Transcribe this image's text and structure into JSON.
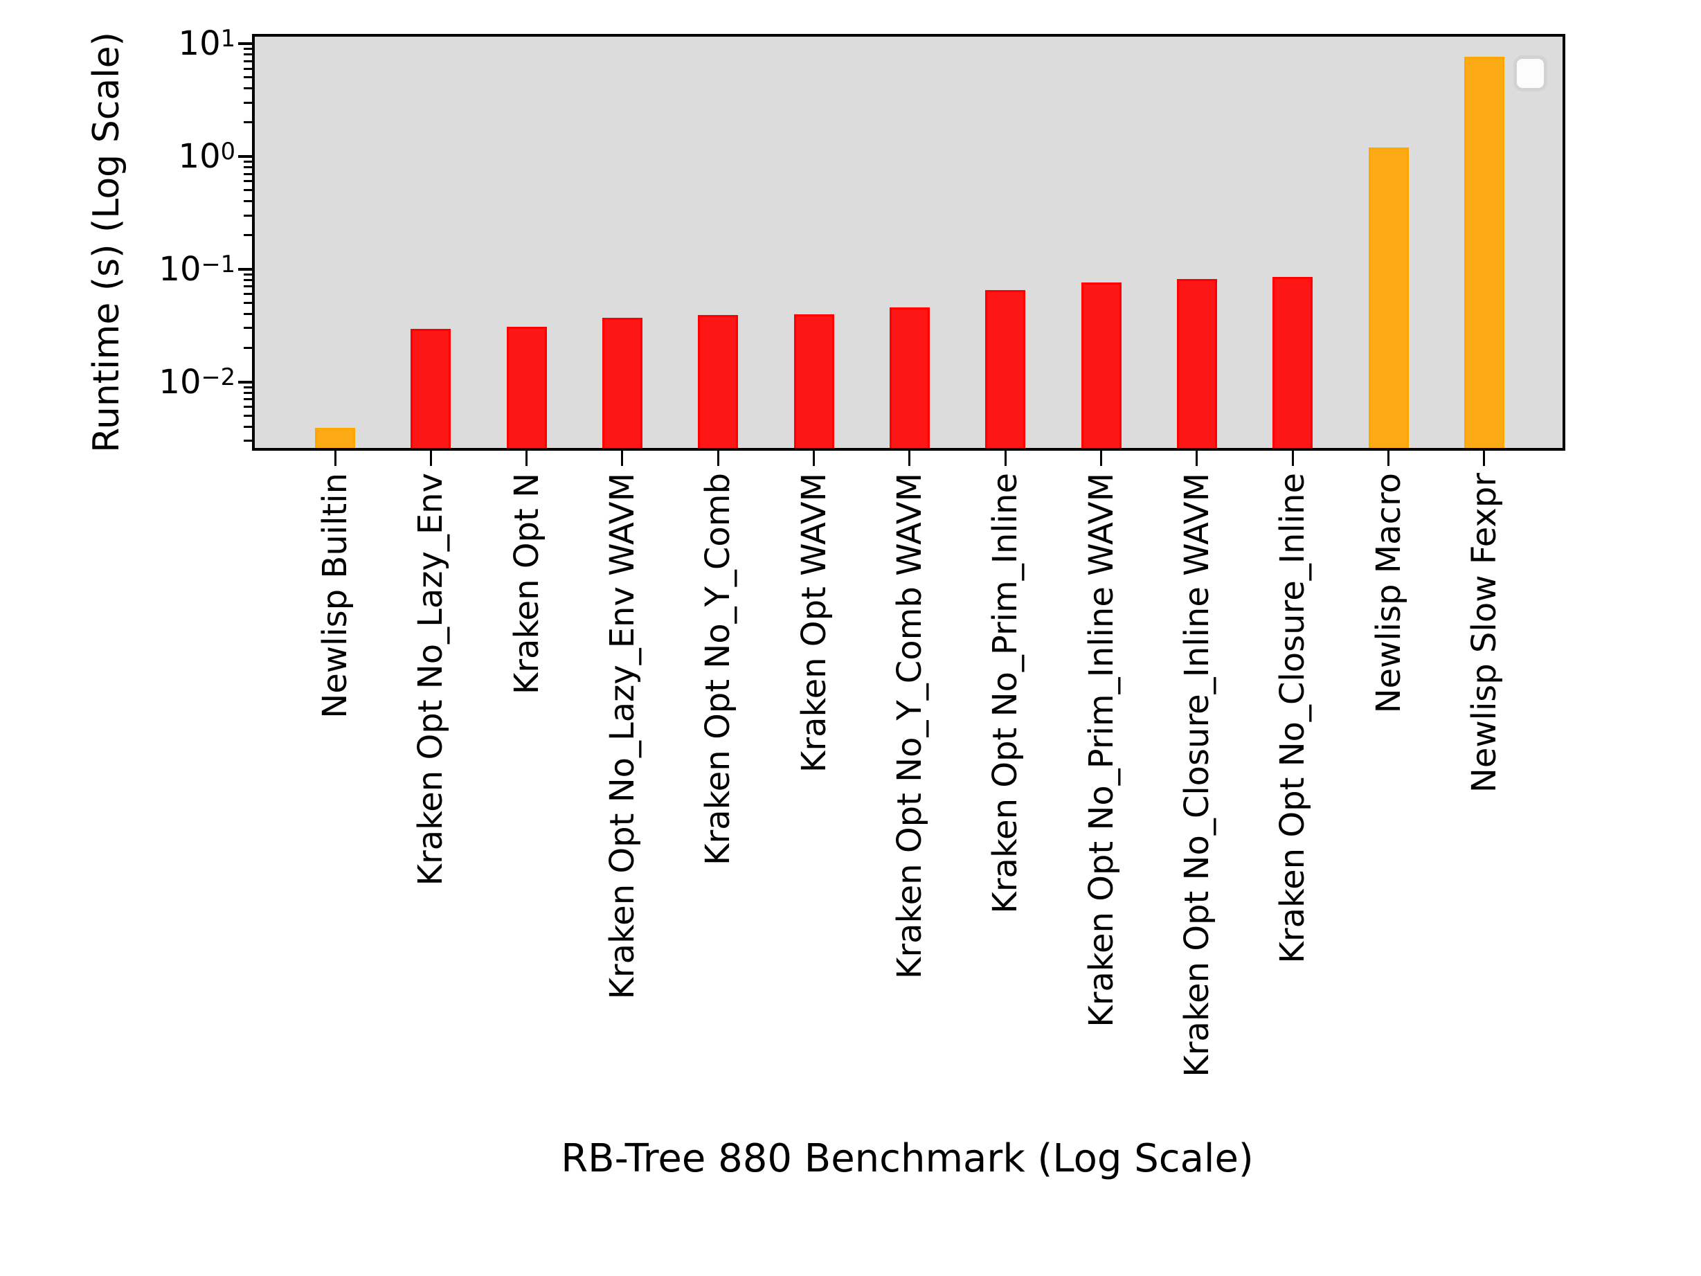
{
  "chart_data": {
    "type": "bar",
    "title": "",
    "xlabel": "RB-Tree 880 Benchmark (Log Scale)",
    "ylabel": "Runtime (s) (Log Scale)",
    "yscale": "log",
    "ylim": [
      0.0026,
      11.5
    ],
    "grid": false,
    "plot_background": "#dcdcdc",
    "figure_background": "#ffffff",
    "legend": {
      "visible": true,
      "entries": [],
      "position": "upper-right",
      "style": "empty-rounded-box"
    },
    "categories": [
      "Newlisp Builtin",
      "Kraken Opt No_Lazy_Env",
      "Kraken Opt N",
      "Kraken Opt No_Lazy_Env WAVM",
      "Kraken Opt No_Y_Comb",
      "Kraken Opt WAVM",
      "Kraken Opt No_Y_Comb WAVM",
      "Kraken Opt No_Prim_Inline",
      "Kraken Opt No_Prim_Inline WAVM",
      "Kraken Opt No_Closure_Inline WAVM",
      "Kraken Opt No_Closure_Inline",
      "Newlisp Macro",
      "Newlisp Slow Fexpr"
    ],
    "values": [
      0.0039,
      0.0296,
      0.031,
      0.037,
      0.039,
      0.04,
      0.046,
      0.065,
      0.076,
      0.082,
      0.085,
      1.2,
      7.6
    ],
    "bar_fill_colors": [
      "rgba(255,165,0,0.9)",
      "rgba(255,0,0,0.9)",
      "rgba(255,0,0,0.9)",
      "rgba(255,0,0,0.9)",
      "rgba(255,0,0,0.9)",
      "rgba(255,0,0,0.9)",
      "rgba(255,0,0,0.9)",
      "rgba(255,0,0,0.9)",
      "rgba(255,0,0,0.9)",
      "rgba(255,0,0,0.9)",
      "rgba(255,0,0,0.9)",
      "rgba(255,165,0,0.9)",
      "rgba(255,165,0,0.9)"
    ],
    "bar_edge_colors": [
      "#ffa500",
      "#ff0000",
      "#ff0000",
      "#ff0000",
      "#ff0000",
      "#ff0000",
      "#ff0000",
      "#ff0000",
      "#ff0000",
      "#ff0000",
      "#ff0000",
      "#ffa500",
      "#ffa500"
    ],
    "accent_red": "#ff0000",
    "accent_orange": "#ffa500",
    "y_ticks": [
      {
        "base": "10",
        "exp": "1",
        "value": 10
      },
      {
        "base": "10",
        "exp": "0",
        "value": 1
      },
      {
        "base": "10",
        "exp": "−1",
        "value": 0.1
      },
      {
        "base": "10",
        "exp": "−2",
        "value": 0.01
      }
    ]
  }
}
